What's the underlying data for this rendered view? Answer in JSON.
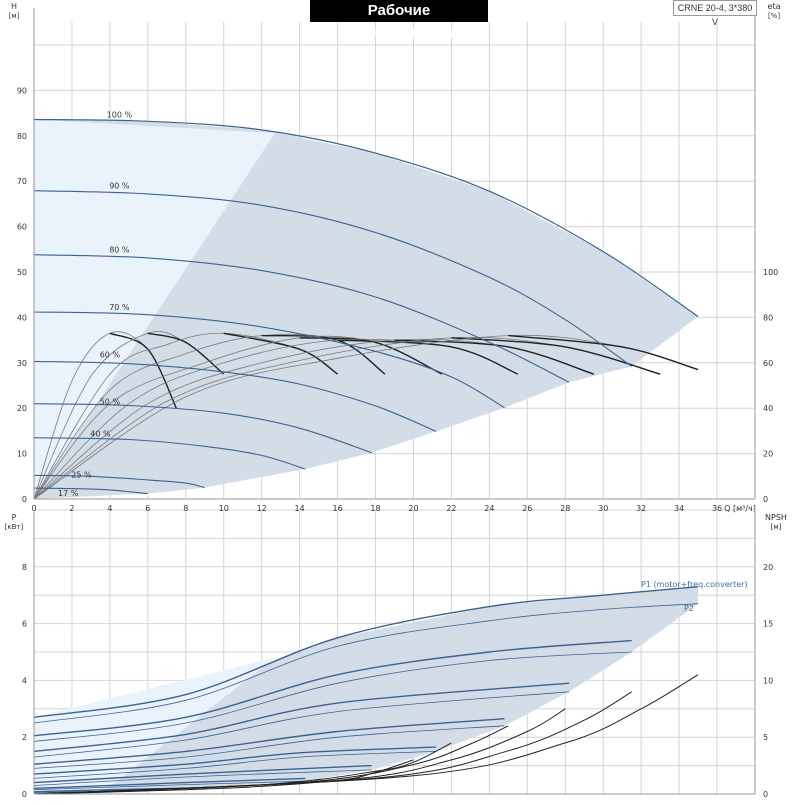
{
  "header": {
    "title": "Рабочие характеристики",
    "model": "CRNE 20-4, 3*380 V"
  },
  "colors": {
    "grid": "#d4d4d4",
    "curve_blue": "#3b6391",
    "curve_dark": "#222222",
    "curve_thin": "#7b7b7b",
    "envelope_fill": "#d3dde8",
    "envelope_light": "#eaf2fb",
    "label_blue": "#3b6fa7"
  },
  "chart_data": [
    {
      "type": "line",
      "name": "head_efficiency",
      "x_axis": {
        "label": "Q [м³/ч]",
        "range": [
          0,
          38
        ],
        "ticks": [
          "0",
          "2",
          "4",
          "6",
          "8",
          "10",
          "12",
          "14",
          "16",
          "18",
          "20",
          "22",
          "24",
          "26",
          "28",
          "30",
          "32",
          "34",
          "36"
        ]
      },
      "y_left": {
        "label_top": "H",
        "label_unit": "[м]",
        "range": [
          0,
          100
        ],
        "ticks": [
          "0",
          "10",
          "20",
          "30",
          "40",
          "50",
          "60",
          "70",
          "80",
          "90"
        ]
      },
      "y_right": {
        "label_top": "eta",
        "label_unit": "[%]",
        "range": [
          0,
          100
        ],
        "ticks": [
          "0",
          "20",
          "40",
          "60",
          "80",
          "100"
        ]
      },
      "grid": true,
      "head_curves": [
        {
          "label": "100 %",
          "points": [
            [
              0,
              83.6
            ],
            [
              6,
              83.2
            ],
            [
              12,
              81.3
            ],
            [
              18,
              76.2
            ],
            [
              24,
              67.8
            ],
            [
              30,
              54.5
            ],
            [
              35,
              40.2
            ]
          ]
        },
        {
          "label": "90 %",
          "points": [
            [
              0,
              67.9
            ],
            [
              6,
              67.2
            ],
            [
              12,
              64.7
            ],
            [
              18,
              58.7
            ],
            [
              24,
              48.8
            ],
            [
              28,
              39.5
            ],
            [
              31.5,
              29.2
            ]
          ]
        },
        {
          "label": "80 %",
          "points": [
            [
              0,
              53.8
            ],
            [
              6,
              53.1
            ],
            [
              12,
              50.3
            ],
            [
              18,
              44.5
            ],
            [
              24,
              34.5
            ],
            [
              28.2,
              25.7
            ]
          ]
        },
        {
          "label": "70 %",
          "points": [
            [
              0,
              41.2
            ],
            [
              6,
              40.6
            ],
            [
              12,
              37.9
            ],
            [
              18,
              32.5
            ],
            [
              22,
              26.9
            ],
            [
              24.8,
              20.1
            ]
          ]
        },
        {
          "label": "60 %",
          "points": [
            [
              0,
              30.3
            ],
            [
              5,
              29.8
            ],
            [
              10,
              28.0
            ],
            [
              14,
              25.3
            ],
            [
              18,
              20.5
            ],
            [
              21.2,
              14.9
            ]
          ]
        },
        {
          "label": "50 %",
          "points": [
            [
              0,
              21.0
            ],
            [
              5,
              20.6
            ],
            [
              10,
              18.9
            ],
            [
              14,
              15.6
            ],
            [
              17.8,
              10.2
            ]
          ]
        },
        {
          "label": "40 %",
          "points": [
            [
              0,
              13.5
            ],
            [
              5,
              13.1
            ],
            [
              9,
              11.6
            ],
            [
              12,
              9.6
            ],
            [
              14.3,
              6.6
            ]
          ]
        },
        {
          "label": "25 %",
          "points": [
            [
              0,
              5.2
            ],
            [
              3,
              5.0
            ],
            [
              6,
              4.2
            ],
            [
              8,
              3.5
            ],
            [
              9,
              2.5
            ]
          ]
        },
        {
          "label": "17 %",
          "points": [
            [
              0,
              2.4
            ],
            [
              2,
              2.3
            ],
            [
              4,
              2.0
            ],
            [
              6,
              1.2
            ]
          ]
        }
      ],
      "efficiency_curves": [
        {
          "points": [
            [
              0,
              0
            ],
            [
              2,
              52
            ],
            [
              4,
              73
            ],
            [
              6,
              66
            ],
            [
              7.5,
              40
            ]
          ]
        },
        {
          "points": [
            [
              0,
              0
            ],
            [
              3,
              54
            ],
            [
              6,
              73
            ],
            [
              8,
              69
            ],
            [
              10,
              55
            ]
          ]
        },
        {
          "points": [
            [
              0,
              0
            ],
            [
              4,
              55
            ],
            [
              7,
              68
            ],
            [
              10,
              73
            ],
            [
              14,
              66
            ],
            [
              16,
              55
            ]
          ]
        },
        {
          "points": [
            [
              0,
              0
            ],
            [
              4,
              48
            ],
            [
              8,
              64
            ],
            [
              12,
              72
            ],
            [
              16,
              70
            ],
            [
              18.5,
              55
            ]
          ]
        },
        {
          "points": [
            [
              0,
              0
            ],
            [
              4,
              42
            ],
            [
              9,
              60
            ],
            [
              14,
              71
            ],
            [
              18,
              69
            ],
            [
              21.5,
              55
            ]
          ]
        },
        {
          "points": [
            [
              0,
              0
            ],
            [
              5,
              42
            ],
            [
              10,
              60
            ],
            [
              16,
              70
            ],
            [
              22,
              67
            ],
            [
              25.5,
              55
            ]
          ]
        },
        {
          "points": [
            [
              0,
              0
            ],
            [
              6,
              42
            ],
            [
              12,
              60
            ],
            [
              19,
              70
            ],
            [
              25,
              67
            ],
            [
              29.5,
              55
            ]
          ]
        },
        {
          "points": [
            [
              0,
              0
            ],
            [
              7,
              43
            ],
            [
              14,
              61
            ],
            [
              22,
              71
            ],
            [
              28,
              67
            ],
            [
              33,
              55
            ]
          ]
        },
        {
          "points": [
            [
              0,
              0
            ],
            [
              8,
              45
            ],
            [
              16,
              62
            ],
            [
              25,
              72
            ],
            [
              31,
              67
            ],
            [
              35,
              57
            ]
          ]
        }
      ]
    },
    {
      "type": "line",
      "name": "power_npsh",
      "x_axis": {
        "label": "Q [м³/ч]",
        "range": [
          0,
          38
        ]
      },
      "y_left": {
        "label_top": "P",
        "label_unit": "[кВт]",
        "range": [
          0,
          10
        ],
        "ticks": [
          "0",
          "2",
          "4",
          "6",
          "8"
        ]
      },
      "y_right": {
        "label_top": "NPSH",
        "label_unit": "[м]",
        "range": [
          0,
          25
        ],
        "ticks": [
          "0",
          "5",
          "10",
          "15",
          "20"
        ]
      },
      "grid": true,
      "annotations": [
        "P1 (motor+freq.converter)",
        "P2"
      ],
      "power_curves": [
        {
          "points": [
            [
              0,
              2.7
            ],
            [
              8,
              3.5
            ],
            [
              16,
              5.5
            ],
            [
              24,
              6.6
            ],
            [
              30,
              7.0
            ],
            [
              35,
              7.3
            ]
          ]
        },
        {
          "points": [
            [
              0,
              2.5
            ],
            [
              8,
              3.3
            ],
            [
              16,
              5.2
            ],
            [
              24,
              6.1
            ],
            [
              30,
              6.5
            ],
            [
              35,
              6.7
            ]
          ]
        },
        {
          "points": [
            [
              0,
              2.05
            ],
            [
              8,
              2.7
            ],
            [
              16,
              4.2
            ],
            [
              24,
              5.0
            ],
            [
              31.5,
              5.4
            ]
          ]
        },
        {
          "points": [
            [
              0,
              1.85
            ],
            [
              8,
              2.5
            ],
            [
              16,
              3.9
            ],
            [
              24,
              4.7
            ],
            [
              31.5,
              5.0
            ]
          ]
        },
        {
          "points": [
            [
              0,
              1.5
            ],
            [
              8,
              2.1
            ],
            [
              16,
              3.2
            ],
            [
              28.2,
              3.9
            ]
          ]
        },
        {
          "points": [
            [
              0,
              1.3
            ],
            [
              8,
              1.9
            ],
            [
              16,
              2.9
            ],
            [
              28.2,
              3.6
            ]
          ]
        },
        {
          "points": [
            [
              0,
              1.05
            ],
            [
              8,
              1.5
            ],
            [
              16,
              2.2
            ],
            [
              24.8,
              2.65
            ]
          ]
        },
        {
          "points": [
            [
              0,
              0.9
            ],
            [
              8,
              1.3
            ],
            [
              16,
              2.0
            ],
            [
              24.8,
              2.4
            ]
          ]
        },
        {
          "points": [
            [
              0,
              0.7
            ],
            [
              8,
              1.05
            ],
            [
              14,
              1.45
            ],
            [
              21.2,
              1.65
            ]
          ]
        },
        {
          "points": [
            [
              0,
              0.55
            ],
            [
              8,
              0.9
            ],
            [
              14,
              1.3
            ],
            [
              21.2,
              1.5
            ]
          ]
        },
        {
          "points": [
            [
              0,
              0.4
            ],
            [
              8,
              0.7
            ],
            [
              17.8,
              1.0
            ]
          ]
        },
        {
          "points": [
            [
              0,
              0.3
            ],
            [
              8,
              0.6
            ],
            [
              17.8,
              0.85
            ]
          ]
        },
        {
          "points": [
            [
              0,
              0.2
            ],
            [
              8,
              0.4
            ],
            [
              14.3,
              0.55
            ]
          ]
        },
        {
          "points": [
            [
              0,
              0.15
            ],
            [
              8,
              0.33
            ],
            [
              14.3,
              0.45
            ]
          ]
        },
        {
          "points": [
            [
              0,
              0.08
            ],
            [
              4,
              0.15
            ],
            [
              9,
              0.22
            ]
          ]
        },
        {
          "points": [
            [
              0,
              0.05
            ],
            [
              4,
              0.1
            ],
            [
              6,
              0.12
            ]
          ]
        }
      ],
      "npsh_curves": [
        {
          "points": [
            [
              0,
              0
            ],
            [
              10,
              0.5
            ],
            [
              16,
              1.2
            ],
            [
              18,
              1.9
            ],
            [
              20,
              3.0
            ]
          ]
        },
        {
          "points": [
            [
              0,
              0
            ],
            [
              12,
              0.8
            ],
            [
              18,
              2.0
            ],
            [
              20,
              2.8
            ],
            [
              22,
              4.5
            ]
          ]
        },
        {
          "points": [
            [
              0,
              0
            ],
            [
              14,
              1.0
            ],
            [
              20,
              2.6
            ],
            [
              23,
              4.4
            ],
            [
              25,
              6.0
            ]
          ]
        },
        {
          "points": [
            [
              0,
              0
            ],
            [
              16,
              1.2
            ],
            [
              22,
              3.0
            ],
            [
              26,
              5.5
            ],
            [
              28,
              7.5
            ]
          ]
        },
        {
          "points": [
            [
              0,
              0
            ],
            [
              18,
              1.4
            ],
            [
              25,
              3.8
            ],
            [
              29,
              6.5
            ],
            [
              31.5,
              9.0
            ]
          ]
        },
        {
          "points": [
            [
              0,
              0
            ],
            [
              20,
              1.6
            ],
            [
              28,
              4.5
            ],
            [
              32,
              7.5
            ],
            [
              35,
              10.5
            ]
          ]
        }
      ]
    }
  ]
}
